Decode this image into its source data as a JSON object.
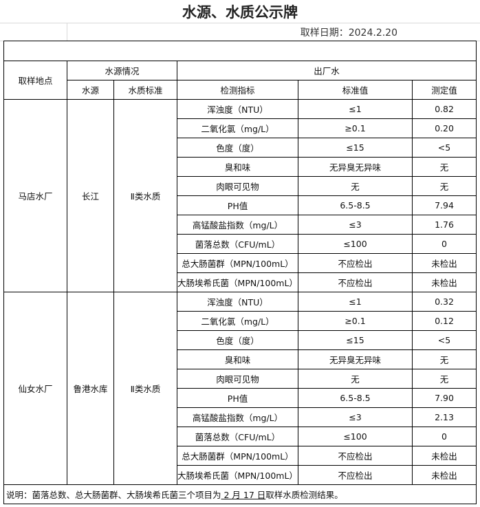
{
  "title": "水源、水质公示牌",
  "date": "取样日期：2024.2.20",
  "header": {
    "site": "取样地点",
    "source_info": "水源情况",
    "source": "水源",
    "quality_std": "水质标准",
    "outlet": "出厂水",
    "indicator": "检测指标",
    "std_value": "标准值",
    "measured": "测定值"
  },
  "plants": [
    {
      "site": "马店水厂",
      "source": "长江",
      "quality": "Ⅱ类水质",
      "rows": [
        [
          "浑浊度（NTU）",
          "≤1",
          "0.82"
        ],
        [
          "二氧化氯（mg/L）",
          "≥0.1",
          "0.20"
        ],
        [
          "色度（度）",
          "≤15",
          "<5"
        ],
        [
          "臭和味",
          "无异臭无异味",
          "无"
        ],
        [
          "肉眼可见物",
          "无",
          "无"
        ],
        [
          "PH值",
          "6.5-8.5",
          "7.94"
        ],
        [
          "高锰酸盐指数（mg/L）",
          "≤3",
          "1.76"
        ],
        [
          "菌落总数（CFU/mL）",
          "≤100",
          "0"
        ],
        [
          "总大肠菌群（MPN/100mL）",
          "不应检出",
          "未检出"
        ],
        [
          "大肠埃希氏菌（MPN/100mL）",
          "不应检出",
          "未检出"
        ]
      ]
    },
    {
      "site": "仙女水厂",
      "source": "鲁港水库",
      "quality": "Ⅱ类水质",
      "rows": [
        [
          "浑浊度（NTU）",
          "≤1",
          "0.32"
        ],
        [
          "二氧化氯（mg/L）",
          "≥0.1",
          "0.12"
        ],
        [
          "色度（度）",
          "≤15",
          "<5"
        ],
        [
          "臭和味",
          "无异臭无异味",
          "无"
        ],
        [
          "肉眼可见物",
          "无",
          "无"
        ],
        [
          "PH值",
          "6.5-8.5",
          "7.90"
        ],
        [
          "高锰酸盐指数（mg/L）",
          "≤3",
          "2.13"
        ],
        [
          "菌落总数（CFU/mL）",
          "≤100",
          "0"
        ],
        [
          "总大肠菌群（MPN/100mL）",
          "不应检出",
          "未检出"
        ],
        [
          "大肠埃希氏菌（MPN/100mL）",
          "不应检出",
          "未检出"
        ]
      ]
    }
  ],
  "note": {
    "prefix": "说明：菌落总数、总大肠菌群、大肠埃希氏菌三个项目为",
    "date": " 2 月 17 日",
    "suffix": "取样水质检测结果。"
  }
}
